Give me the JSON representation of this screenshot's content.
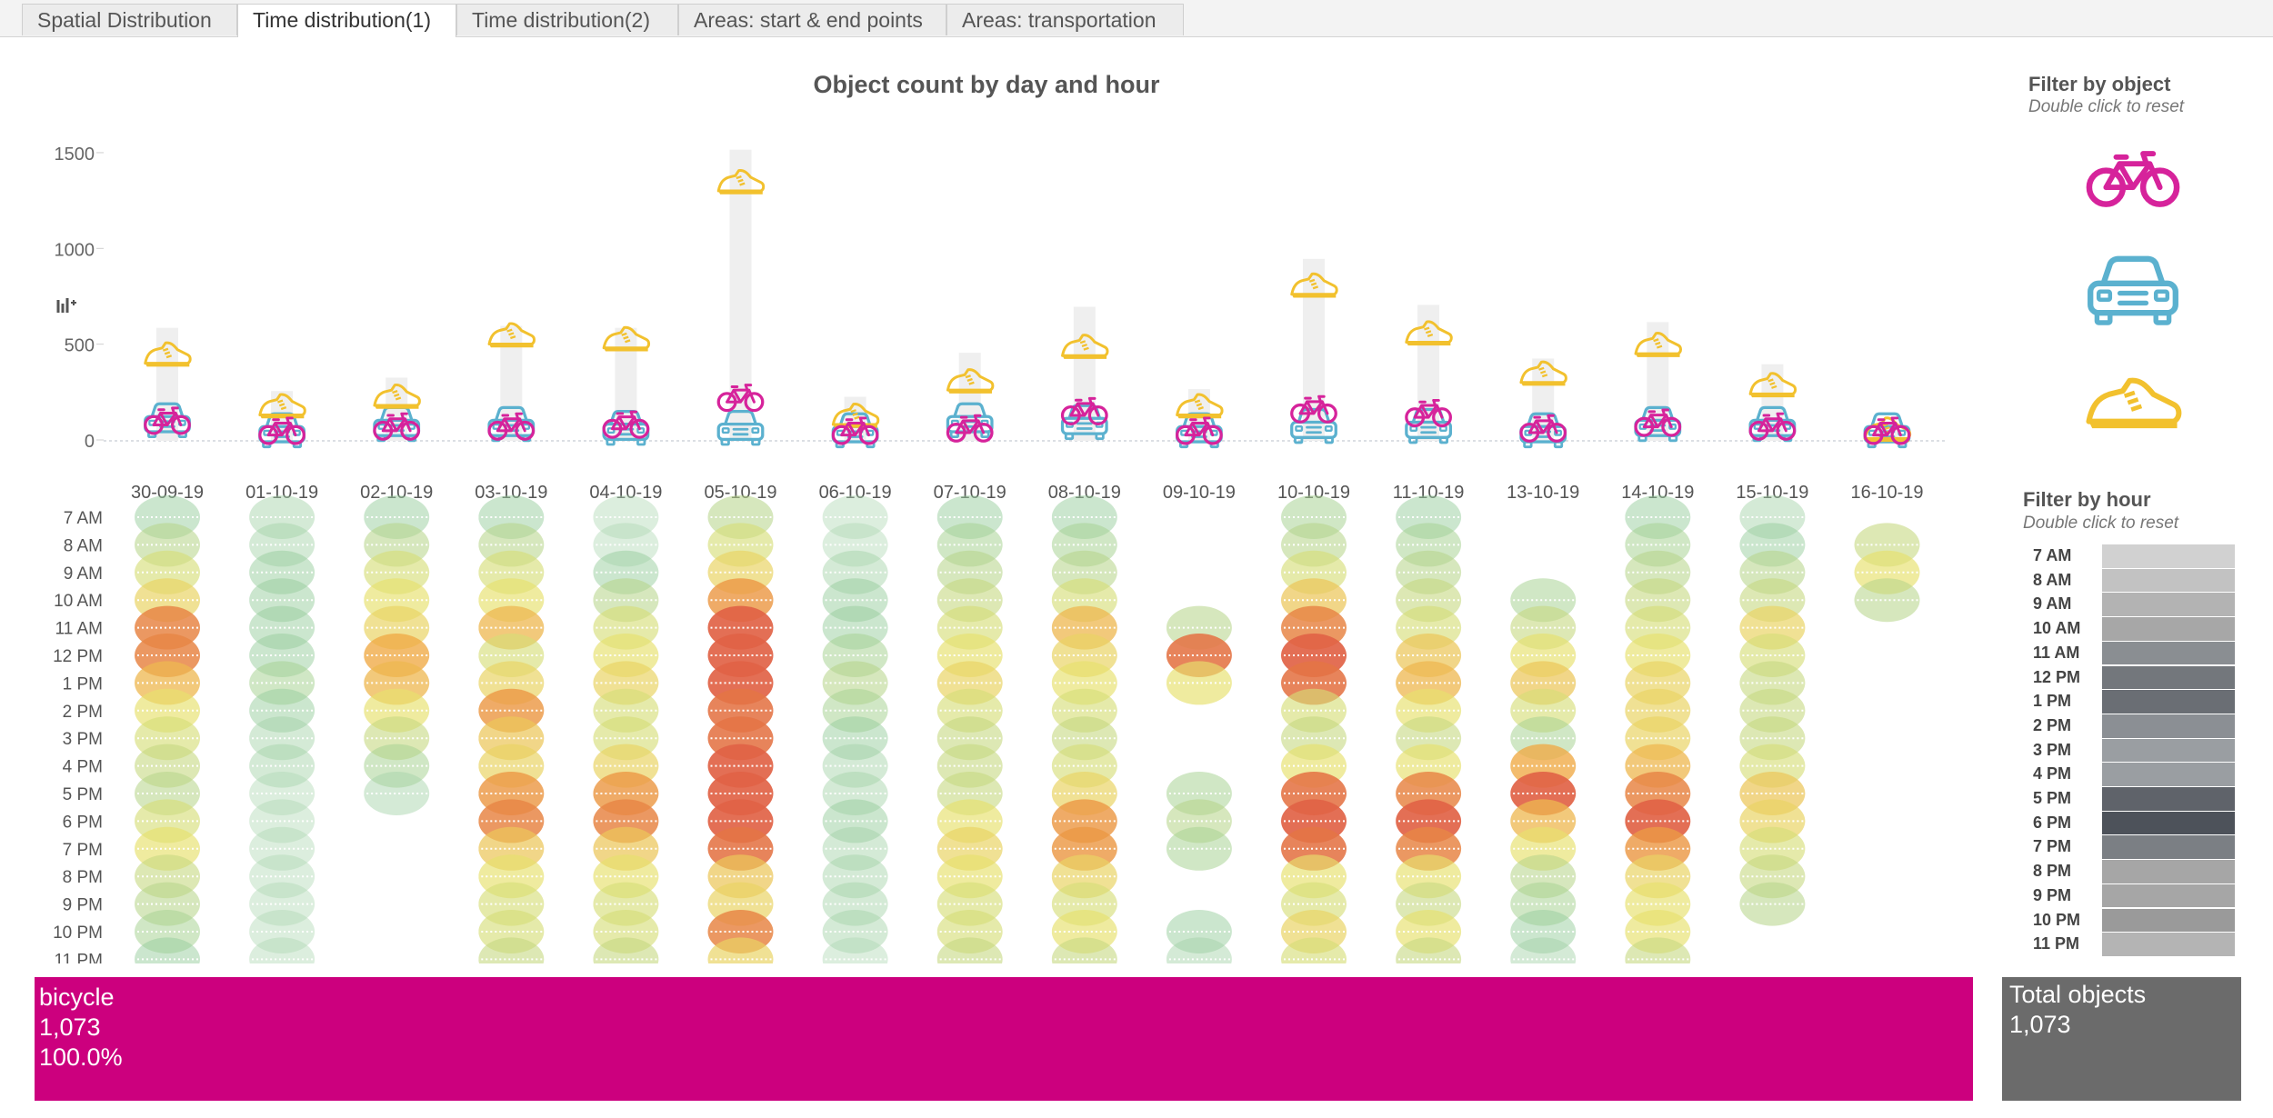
{
  "tabs": [
    {
      "label": "Spatial Distribution",
      "active": false
    },
    {
      "label": "Time distribution(1)",
      "active": true
    },
    {
      "label": "Time distribution(2)",
      "active": false
    },
    {
      "label": "Areas: start & end points",
      "active": false
    },
    {
      "label": "Areas: transportation",
      "active": false
    }
  ],
  "chart_title": "Object count by day and hour",
  "chart_data": {
    "type": "bar",
    "title": "Object count by day and hour",
    "categories": [
      "30-09-19",
      "01-10-19",
      "02-10-19",
      "03-10-19",
      "04-10-19",
      "05-10-19",
      "06-10-19",
      "07-10-19",
      "08-10-19",
      "09-10-19",
      "10-10-19",
      "11-10-19",
      "13-10-19",
      "14-10-19",
      "15-10-19",
      "16-10-19"
    ],
    "yticks": [
      0,
      500,
      1000,
      1500
    ],
    "ylim": [
      -30,
      1560
    ],
    "series": [
      {
        "name": "pedestrian",
        "color": "#f2c12e",
        "icon": "shoe-icon",
        "values": [
          440,
          170,
          220,
          540,
          520,
          1340,
          120,
          300,
          480,
          170,
          800,
          550,
          340,
          490,
          280,
          30
        ]
      },
      {
        "name": "bicycle",
        "color": "#d6239b",
        "icon": "bicycle-icon",
        "values": [
          100,
          30,
          70,
          70,
          80,
          220,
          40,
          60,
          150,
          40,
          160,
          140,
          60,
          90,
          70,
          20
        ]
      },
      {
        "name": "car",
        "color": "#5bb1cf",
        "icon": "car-icon",
        "values": [
          100,
          40,
          80,
          80,
          60,
          60,
          40,
          100,
          90,
          30,
          70,
          70,
          40,
          80,
          80,
          30
        ]
      }
    ],
    "total_bars": [
      590,
      260,
      330,
      600,
      590,
      1520,
      230,
      460,
      700,
      270,
      950,
      710,
      430,
      620,
      400,
      90
    ],
    "hours": [
      "7 AM",
      "8 AM",
      "9 AM",
      "10 AM",
      "11 AM",
      "12 PM",
      "1 PM",
      "2 PM",
      "3 PM",
      "4 PM",
      "5 PM",
      "6 PM",
      "7 PM",
      "8 PM",
      "9 PM",
      "10 PM",
      "11 PM"
    ],
    "heatmap": [
      [
        0.3,
        0.4,
        0.5,
        0.6,
        0.85,
        0.85,
        0.7,
        0.55,
        0.5,
        0.45,
        0.4,
        0.5,
        0.55,
        0.45,
        0.4,
        0.35,
        0.3
      ],
      [
        0.25,
        0.25,
        0.3,
        0.3,
        0.3,
        0.3,
        0.35,
        0.3,
        0.25,
        0.25,
        0.2,
        0.2,
        0.2,
        0.2,
        0.2,
        0.2,
        0.2
      ],
      [
        0.3,
        0.4,
        0.5,
        0.55,
        0.6,
        0.75,
        0.7,
        0.55,
        0.45,
        0.35,
        0.25,
        0,
        0,
        0,
        0,
        0,
        0
      ],
      [
        0.3,
        0.4,
        0.5,
        0.55,
        0.7,
        0.5,
        0.6,
        0.8,
        0.65,
        0.6,
        0.8,
        0.85,
        0.65,
        0.55,
        0.5,
        0.5,
        0.45
      ],
      [
        0.2,
        0.2,
        0.3,
        0.4,
        0.5,
        0.55,
        0.6,
        0.5,
        0.5,
        0.6,
        0.8,
        0.85,
        0.65,
        0.55,
        0.5,
        0.5,
        0.45
      ],
      [
        0.4,
        0.5,
        0.6,
        0.8,
        0.95,
        0.95,
        0.95,
        0.9,
        0.9,
        0.95,
        0.95,
        0.95,
        0.9,
        0.65,
        0.6,
        0.85,
        0.6
      ],
      [
        0.2,
        0.2,
        0.25,
        0.3,
        0.3,
        0.35,
        0.4,
        0.35,
        0.3,
        0.25,
        0.25,
        0.3,
        0.25,
        0.25,
        0.25,
        0.25,
        0.2
      ],
      [
        0.3,
        0.35,
        0.4,
        0.45,
        0.5,
        0.55,
        0.6,
        0.5,
        0.45,
        0.45,
        0.45,
        0.55,
        0.6,
        0.55,
        0.5,
        0.5,
        0.45
      ],
      [
        0.3,
        0.35,
        0.4,
        0.5,
        0.7,
        0.6,
        0.55,
        0.5,
        0.45,
        0.5,
        0.6,
        0.8,
        0.8,
        0.6,
        0.5,
        0.55,
        0.45
      ],
      [
        0,
        0,
        0,
        0,
        0.4,
        0.9,
        0.55,
        0,
        0,
        0,
        0.35,
        0.4,
        0.35,
        0,
        0,
        0.3,
        0.25
      ],
      [
        0.35,
        0.4,
        0.5,
        0.65,
        0.85,
        0.95,
        0.9,
        0.5,
        0.45,
        0.55,
        0.9,
        0.95,
        0.9,
        0.55,
        0.5,
        0.6,
        0.5
      ],
      [
        0.3,
        0.35,
        0.4,
        0.45,
        0.5,
        0.65,
        0.7,
        0.55,
        0.45,
        0.55,
        0.85,
        0.95,
        0.85,
        0.55,
        0.45,
        0.55,
        0.45
      ],
      [
        0,
        0,
        0,
        0.35,
        0.45,
        0.55,
        0.65,
        0.5,
        0.35,
        0.75,
        0.95,
        0.7,
        0.55,
        0.4,
        0.35,
        0.3,
        0.25
      ],
      [
        0.3,
        0.35,
        0.4,
        0.45,
        0.5,
        0.55,
        0.6,
        0.6,
        0.6,
        0.7,
        0.85,
        0.95,
        0.8,
        0.6,
        0.55,
        0.55,
        0.45
      ],
      [
        0.25,
        0.3,
        0.4,
        0.45,
        0.6,
        0.5,
        0.45,
        0.45,
        0.45,
        0.5,
        0.65,
        0.6,
        0.5,
        0.45,
        0.4,
        0,
        0
      ],
      [
        0,
        0.45,
        0.55,
        0.4,
        0,
        0,
        0,
        0,
        0,
        0,
        0,
        0,
        0,
        0,
        0,
        0,
        0
      ]
    ]
  },
  "side": {
    "object_title": "Filter by object",
    "object_subtitle": "Double click to reset",
    "objects": [
      {
        "name": "bicycle",
        "color": "#d6239b"
      },
      {
        "name": "car",
        "color": "#5bb1cf"
      },
      {
        "name": "pedestrian",
        "color": "#f2c12e"
      }
    ],
    "hour_title": "Filter by hour",
    "hour_subtitle": "Double click to reset",
    "hours": [
      {
        "label": "7 AM",
        "shade": "#d1d1d1"
      },
      {
        "label": "8 AM",
        "shade": "#c2c2c2"
      },
      {
        "label": "9 AM",
        "shade": "#b3b3b3"
      },
      {
        "label": "10 AM",
        "shade": "#a7a7a7"
      },
      {
        "label": "11 AM",
        "shade": "#8a8e92"
      },
      {
        "label": "12 PM",
        "shade": "#73777c"
      },
      {
        "label": "1 PM",
        "shade": "#6a6e74"
      },
      {
        "label": "2 PM",
        "shade": "#8b8f94"
      },
      {
        "label": "3 PM",
        "shade": "#9a9ea2"
      },
      {
        "label": "4 PM",
        "shade": "#9a9ea2"
      },
      {
        "label": "5 PM",
        "shade": "#5f636a"
      },
      {
        "label": "6 PM",
        "shade": "#4d525a"
      },
      {
        "label": "7 PM",
        "shade": "#7b7f84"
      },
      {
        "label": "8 PM",
        "shade": "#a6a6a6"
      },
      {
        "label": "9 PM",
        "shade": "#a6a6a6"
      },
      {
        "label": "10 PM",
        "shade": "#9a9a9a"
      },
      {
        "label": "11 PM",
        "shade": "#b4b4b4"
      }
    ]
  },
  "summary": {
    "object_label": "bicycle",
    "object_count": "1,073",
    "object_percent": "100.0%",
    "object_color": "#cc007e",
    "total_label": "Total objects",
    "total_value": "1,073"
  }
}
